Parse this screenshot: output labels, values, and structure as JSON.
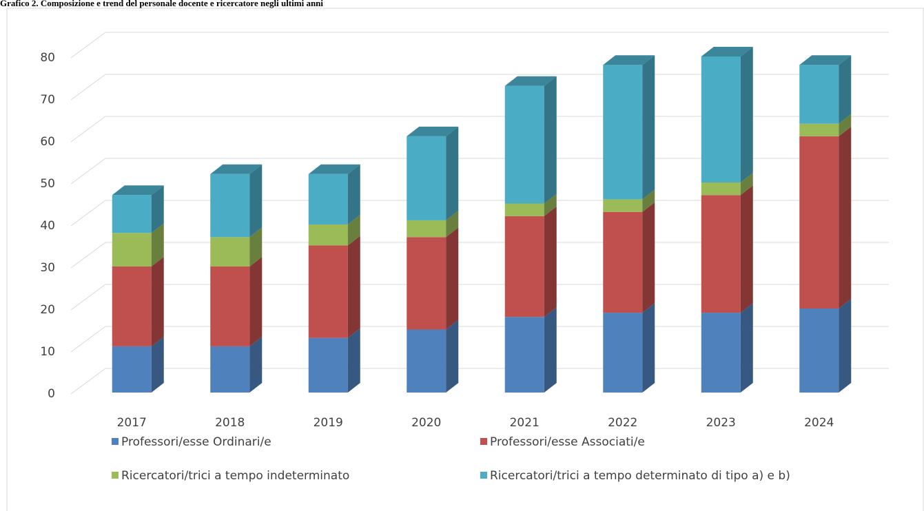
{
  "chart_data": {
    "type": "bar3d_stacked",
    "title": "Grafico 2. Composizione e trend del personale docente e ricercatore negli ultimi anni",
    "categories": [
      "2017",
      "2018",
      "2019",
      "2020",
      "2021",
      "2022",
      "2023",
      "2024"
    ],
    "series": [
      {
        "name": "Professori/esse Ordinari/e",
        "color": "#4f81bd",
        "values": [
          11,
          11,
          13,
          15,
          18,
          19,
          19,
          20
        ]
      },
      {
        "name": "Professori/esse Associati/e",
        "color": "#c0504d",
        "values": [
          19,
          19,
          22,
          22,
          24,
          24,
          28,
          41
        ]
      },
      {
        "name": "Ricercatori/trici a tempo indeterminato",
        "color": "#9bbb59",
        "values": [
          8,
          7,
          5,
          4,
          3,
          3,
          3,
          3
        ]
      },
      {
        "name": "Ricercatori/trici a tempo determinato di tipo a) e b)",
        "color": "#4bacc6",
        "values": [
          9,
          15,
          12,
          20,
          28,
          32,
          30,
          14
        ]
      }
    ],
    "ylim": [
      0,
      80
    ],
    "yticks": [
      0,
      10,
      20,
      30,
      40,
      50,
      60,
      70,
      80
    ],
    "grid": true
  }
}
